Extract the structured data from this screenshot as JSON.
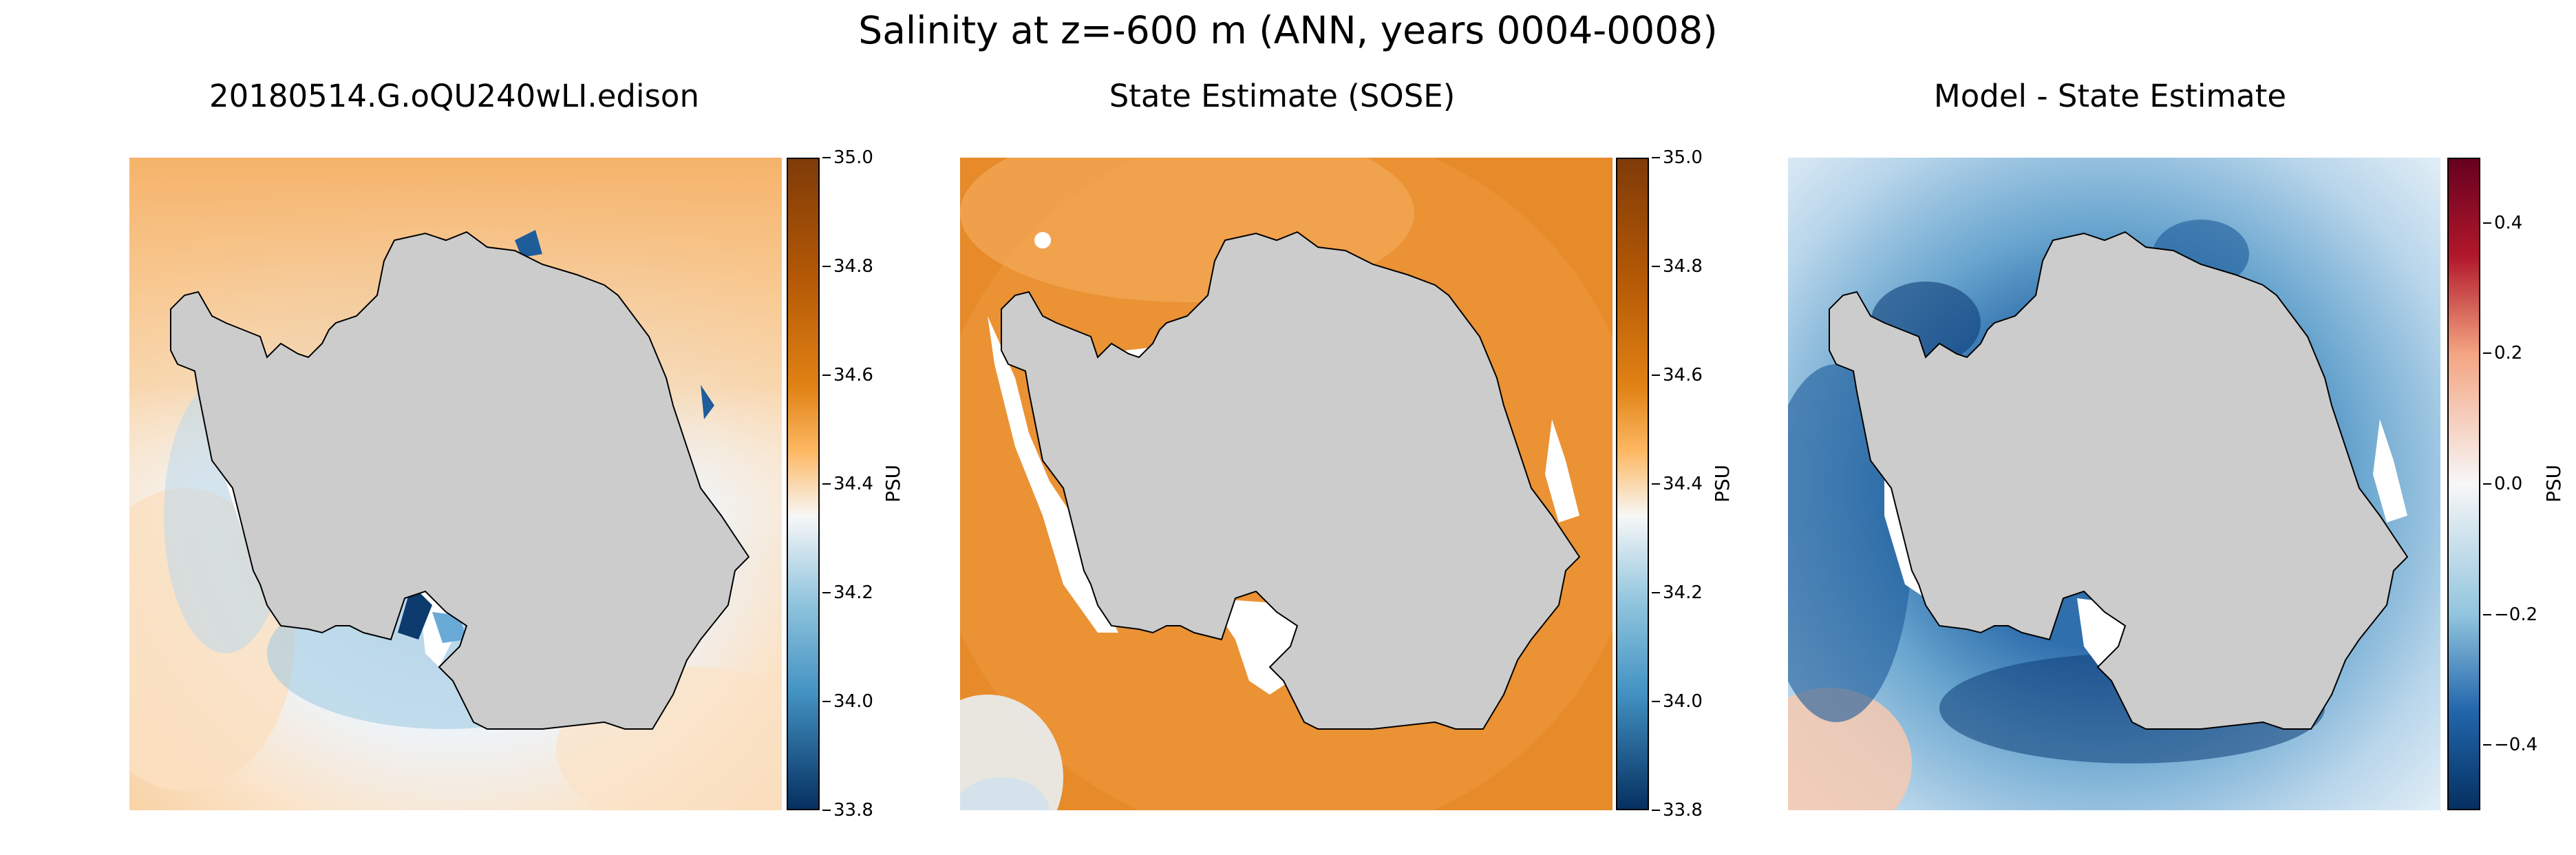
{
  "title": "Salinity at z=-600 m (ANN, years 0004-0008)",
  "chart_data": [
    {
      "type": "heatmap",
      "title": "20180514.G.oQU240wLI.edison",
      "colorbar": {
        "label": "PSU",
        "range": [
          33.8,
          35.0
        ],
        "colormap": "blue-white-orange",
        "ticks": [
          "35.0",
          "34.8",
          "34.6",
          "34.4",
          "34.2",
          "34.0",
          "33.8"
        ]
      },
      "land_color": "#cccccc"
    },
    {
      "type": "heatmap",
      "title": "State Estimate (SOSE)",
      "colorbar": {
        "label": "PSU",
        "range": [
          33.8,
          35.0
        ],
        "colormap": "blue-white-orange",
        "ticks": [
          "35.0",
          "34.8",
          "34.6",
          "34.4",
          "34.2",
          "34.0",
          "33.8"
        ]
      },
      "land_color": "#cccccc"
    },
    {
      "type": "heatmap",
      "title": "Model - State Estimate",
      "colorbar": {
        "label": "PSU",
        "range": [
          -0.5,
          0.5
        ],
        "colormap": "blue-white-red",
        "ticks": [
          "0.4",
          "0.2",
          "0.0",
          "−0.2",
          "−0.4"
        ]
      },
      "land_color": "#cccccc"
    }
  ]
}
